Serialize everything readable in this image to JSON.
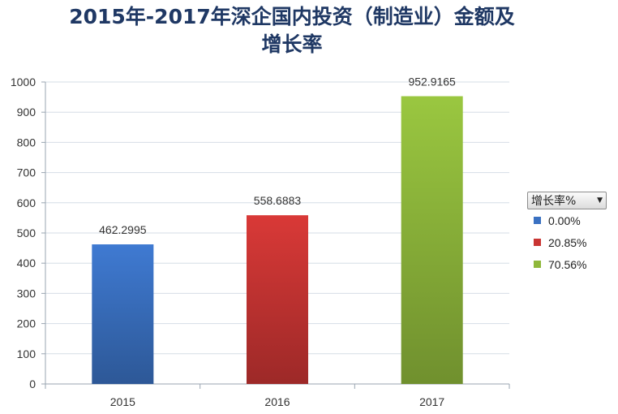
{
  "chart_data": {
    "type": "bar",
    "title": [
      "2015年-2017年深企国内投资（制造业）金额及",
      "增长率"
    ],
    "categories": [
      "2015",
      "2016",
      "2017"
    ],
    "values": [
      462.2995,
      558.6883,
      952.9165
    ],
    "data_labels": [
      "462.2995",
      "558.6883",
      "952.9165"
    ],
    "bar_colors": [
      "#3a71c2",
      "#c93533",
      "#8fb83b"
    ],
    "ylim": [
      0,
      1000
    ],
    "yticks": [
      0,
      100,
      200,
      300,
      400,
      500,
      600,
      700,
      800,
      900,
      1000
    ],
    "grid": true,
    "legend": {
      "filter_label": "增长率%",
      "placement": "right",
      "entries": [
        {
          "label": "0.00%",
          "color": "#3a71c2"
        },
        {
          "label": "20.85%",
          "color": "#c93533"
        },
        {
          "label": "70.56%",
          "color": "#8fb83b"
        }
      ]
    }
  }
}
